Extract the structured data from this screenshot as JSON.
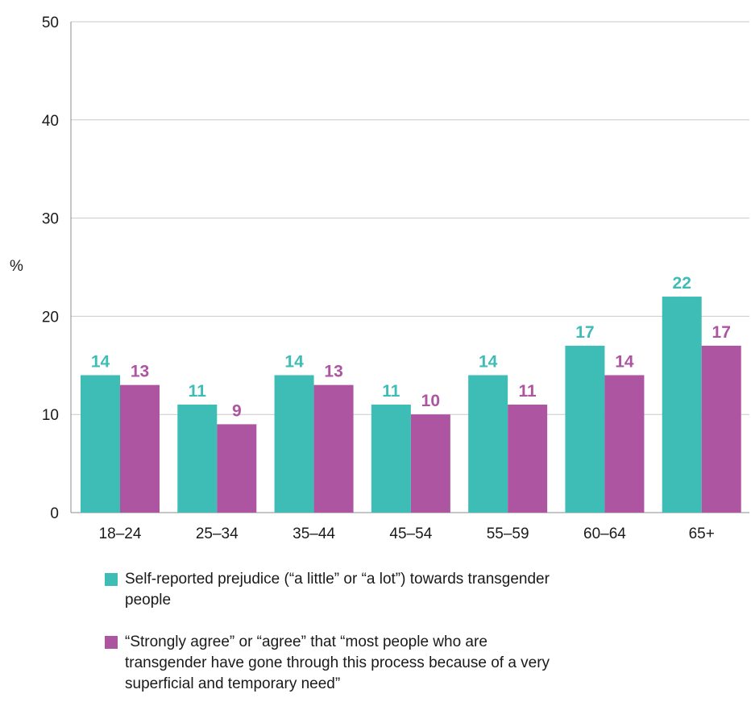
{
  "chart_data": {
    "type": "bar",
    "ylabel": "%",
    "ylim": [
      0,
      50
    ],
    "yticks": [
      "0",
      "10",
      "20",
      "30",
      "40",
      "50"
    ],
    "grid": true,
    "categories": [
      "18–24",
      "25–34",
      "35–44",
      "45–54",
      "55–59",
      "60–64",
      "65+"
    ],
    "series": [
      {
        "name": "Self-reported prejudice (“a little” or “a lot”) towards transgender people",
        "color": "#3dbdb5",
        "values": [
          14,
          11,
          14,
          11,
          14,
          17,
          22
        ]
      },
      {
        "name": "“Strongly agree” or “agree” that “most people who are transgender have gone through this process because of a very superficial and temporary need”",
        "color": "#ae55a2",
        "values": [
          13,
          9,
          13,
          10,
          11,
          14,
          17
        ]
      }
    ],
    "legend_position": "bottom"
  }
}
